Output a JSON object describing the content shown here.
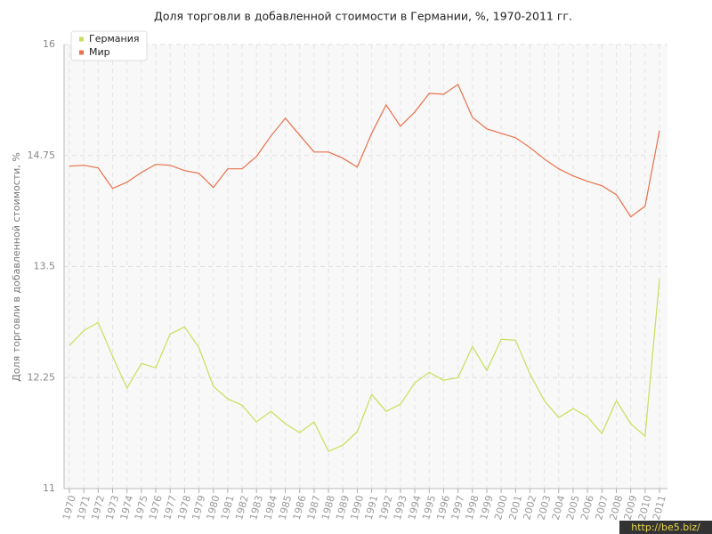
{
  "chart_data": {
    "type": "line",
    "title": "Доля торговли в добавленной стоимости в Германии, %, 1970-2011 гг.",
    "y_label": "Доля торговли в добавленной стоимости, %",
    "categories": [
      "1970",
      "1971",
      "1972",
      "1973",
      "1974",
      "1975",
      "1976",
      "1977",
      "1978",
      "1979",
      "1980",
      "1981",
      "1982",
      "1983",
      "1984",
      "1985",
      "1986",
      "1987",
      "1988",
      "1989",
      "1990",
      "1991",
      "1992",
      "1993",
      "1994",
      "1995",
      "1996",
      "1997",
      "1998",
      "1999",
      "2000",
      "2001",
      "2002",
      "2003",
      "2004",
      "2005",
      "2006",
      "2007",
      "2008",
      "2009",
      "2010",
      "2011"
    ],
    "series": [
      {
        "name": "Германия",
        "color": "#c5e05a",
        "values": [
          12.61,
          12.78,
          12.87,
          12.49,
          12.13,
          12.41,
          12.36,
          12.74,
          12.82,
          12.59,
          12.15,
          12.01,
          11.94,
          11.75,
          11.87,
          11.73,
          11.63,
          11.75,
          11.42,
          11.49,
          11.64,
          12.06,
          11.87,
          11.95,
          12.19,
          12.31,
          12.22,
          12.25,
          12.6,
          12.33,
          12.68,
          12.67,
          12.29,
          11.99,
          11.8,
          11.9,
          11.81,
          11.62,
          11.99,
          11.73,
          11.59,
          13.36
        ]
      },
      {
        "name": "Мир",
        "color": "#e8704a",
        "values": [
          14.63,
          14.64,
          14.61,
          14.38,
          14.45,
          14.56,
          14.65,
          14.64,
          14.58,
          14.55,
          14.39,
          14.6,
          14.6,
          14.74,
          14.97,
          15.17,
          14.98,
          14.79,
          14.79,
          14.72,
          14.62,
          15.0,
          15.32,
          15.08,
          15.24,
          15.45,
          15.44,
          15.55,
          15.18,
          15.05,
          15.0,
          14.95,
          14.84,
          14.71,
          14.6,
          14.52,
          14.46,
          14.41,
          14.31,
          14.06,
          14.18,
          15.03
        ]
      }
    ],
    "ylim": [
      11,
      16
    ],
    "yticks": [
      11,
      12.25,
      13.5,
      14.75,
      16
    ],
    "grid": true,
    "legend": "top-left",
    "watermark": "http://be5.biz/"
  }
}
